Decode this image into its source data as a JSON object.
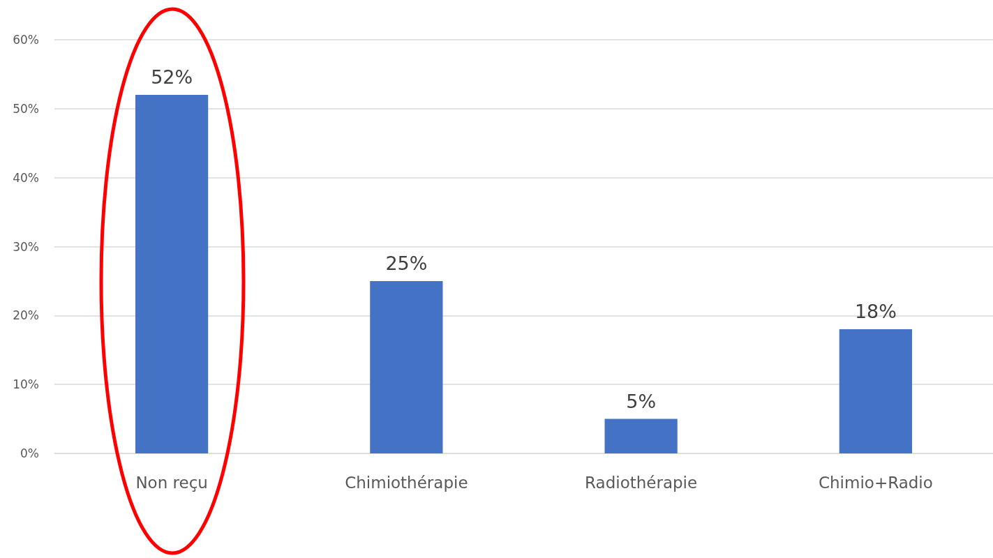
{
  "chart_data": {
    "type": "bar",
    "categories": [
      "Non reçu",
      "Chimiothérapie",
      "Radiothérapie",
      "Chimio+Radio"
    ],
    "values": [
      52,
      25,
      5,
      18
    ],
    "value_labels": [
      "52%",
      "25%",
      "5%",
      "18%"
    ],
    "color": "#4472c4",
    "ylim": [
      0,
      60
    ],
    "yticks": [
      {
        "value": 0,
        "label": "0%"
      },
      {
        "value": 10,
        "label": "10%"
      },
      {
        "value": 20,
        "label": "20%"
      },
      {
        "value": 30,
        "label": "30%"
      },
      {
        "value": 40,
        "label": "40%"
      },
      {
        "value": 50,
        "label": "50%"
      },
      {
        "value": 60,
        "label": "60%"
      }
    ],
    "grid": "y"
  }
}
